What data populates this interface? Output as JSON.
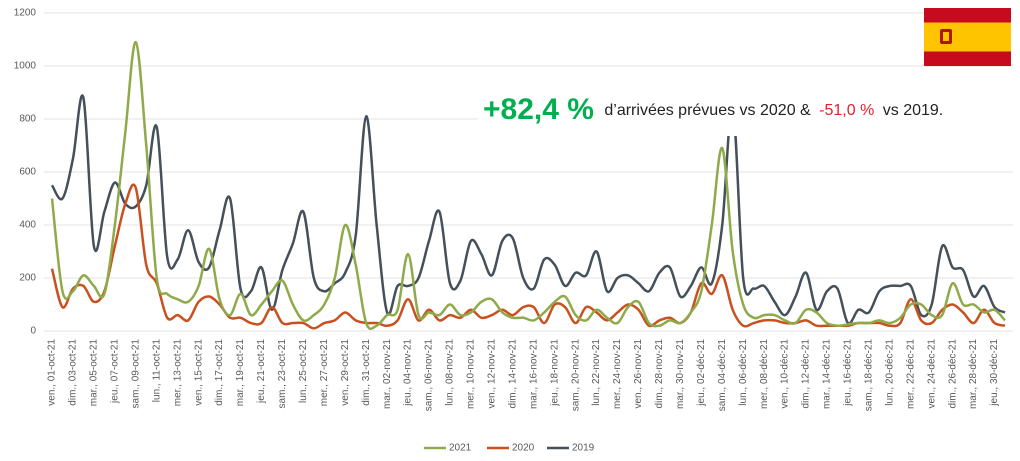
{
  "chart_data": {
    "type": "line",
    "categories": [
      "ven., 01-oct-21",
      null,
      "dim., 03-oct-21",
      null,
      "mar., 05-oct-21",
      null,
      "jeu., 07-oct-21",
      null,
      "sam., 09-oct-21",
      null,
      "lun., 11-oct-21",
      null,
      "mer., 13-oct-21",
      null,
      "ven., 15-oct-21",
      null,
      "dim., 17-oct-21",
      null,
      "mar., 19-oct-21",
      null,
      "jeu., 21-oct-21",
      null,
      "sam., 23-oct-21",
      null,
      "lun., 25-oct-21",
      null,
      "mer., 27-oct-21",
      null,
      "ven., 29-oct-21",
      null,
      "dim., 31-oct-21",
      null,
      "mar., 02-nov-21",
      null,
      "jeu., 04-nov-21",
      null,
      "sam., 06-nov-21",
      null,
      "lun., 08-nov-21",
      null,
      "mer., 10-nov-21",
      null,
      "ven., 12-nov-21",
      null,
      "dim., 14-nov-21",
      null,
      "mar., 16-nov-21",
      null,
      "jeu., 18-nov-21",
      null,
      "sam., 20-nov-21",
      null,
      "lun., 22-nov-21",
      null,
      "mer., 24-nov-21",
      null,
      "ven., 26-nov-21",
      null,
      "dim., 28-nov-21",
      null,
      "mar., 30-nov-21",
      null,
      "jeu., 02-déc-21",
      null,
      "sam., 04-déc-21",
      null,
      "lun., 06-déc-21",
      null,
      "mer., 08-déc-21",
      null,
      "ven., 10-déc-21",
      null,
      "dim., 12-déc-21",
      null,
      "mar., 14-déc-21",
      null,
      "jeu., 16-déc-21",
      null,
      "sam., 18-déc-21",
      null,
      "lun., 20-déc-21",
      null,
      "mer., 22-déc-21",
      null,
      "ven., 24-déc-21",
      null,
      "dim., 26-déc-21",
      null,
      "mar., 28-déc-21",
      null,
      "jeu., 30-déc-21",
      null
    ],
    "series": [
      {
        "name": "2021",
        "color": "#8faa4a",
        "values": [
          500,
          150,
          150,
          210,
          170,
          140,
          400,
          750,
          1090,
          700,
          200,
          140,
          120,
          110,
          170,
          310,
          120,
          60,
          140,
          60,
          100,
          150,
          190,
          100,
          40,
          60,
          100,
          200,
          400,
          250,
          30,
          20,
          60,
          80,
          290,
          60,
          70,
          60,
          100,
          60,
          70,
          110,
          120,
          70,
          50,
          50,
          40,
          70,
          110,
          130,
          60,
          40,
          80,
          50,
          30,
          90,
          110,
          30,
          20,
          40,
          30,
          70,
          150,
          400,
          690,
          300,
          100,
          50,
          60,
          60,
          40,
          30,
          80,
          70,
          30,
          20,
          25,
          30,
          30,
          40,
          30,
          50,
          100,
          100,
          60,
          60,
          180,
          100,
          100,
          70,
          80,
          40
        ]
      },
      {
        "name": "2020",
        "color": "#c9511f",
        "values": [
          235,
          90,
          160,
          170,
          110,
          150,
          320,
          480,
          540,
          250,
          180,
          50,
          60,
          40,
          110,
          130,
          100,
          50,
          50,
          30,
          30,
          90,
          30,
          30,
          30,
          10,
          30,
          40,
          70,
          40,
          30,
          30,
          20,
          40,
          120,
          40,
          80,
          40,
          60,
          50,
          80,
          50,
          60,
          80,
          60,
          90,
          90,
          30,
          100,
          90,
          30,
          90,
          70,
          40,
          70,
          100,
          80,
          20,
          40,
          50,
          30,
          70,
          180,
          140,
          210,
          80,
          20,
          30,
          40,
          40,
          30,
          30,
          40,
          20,
          20,
          20,
          20,
          30,
          30,
          30,
          20,
          30,
          120,
          40,
          30,
          80,
          100,
          70,
          30,
          80,
          30,
          20
        ]
      },
      {
        "name": "2019",
        "color": "#44505a",
        "values": [
          550,
          500,
          650,
          880,
          320,
          450,
          560,
          480,
          470,
          550,
          770,
          280,
          270,
          380,
          260,
          240,
          380,
          500,
          160,
          150,
          240,
          80,
          230,
          330,
          450,
          200,
          150,
          180,
          220,
          360,
          810,
          400,
          70,
          170,
          170,
          200,
          340,
          450,
          180,
          190,
          340,
          290,
          210,
          340,
          350,
          200,
          160,
          270,
          250,
          170,
          220,
          210,
          300,
          150,
          200,
          210,
          180,
          150,
          220,
          240,
          130,
          170,
          240,
          180,
          400,
          850,
          200,
          160,
          170,
          110,
          60,
          130,
          220,
          80,
          150,
          160,
          30,
          80,
          70,
          150,
          170,
          170,
          170,
          60,
          100,
          320,
          240,
          230,
          130,
          170,
          90,
          70
        ]
      }
    ],
    "ylim": [
      0,
      1200
    ],
    "yticks": [
      0,
      200,
      400,
      600,
      800,
      1000,
      1200
    ],
    "grid": true,
    "annotation": {
      "highlight": "+82,4 %",
      "text": "d’arrivées prévues vs 2020 &",
      "highlight2": "-51,0 %",
      "text2": "vs 2019."
    },
    "legend": "bottom"
  }
}
